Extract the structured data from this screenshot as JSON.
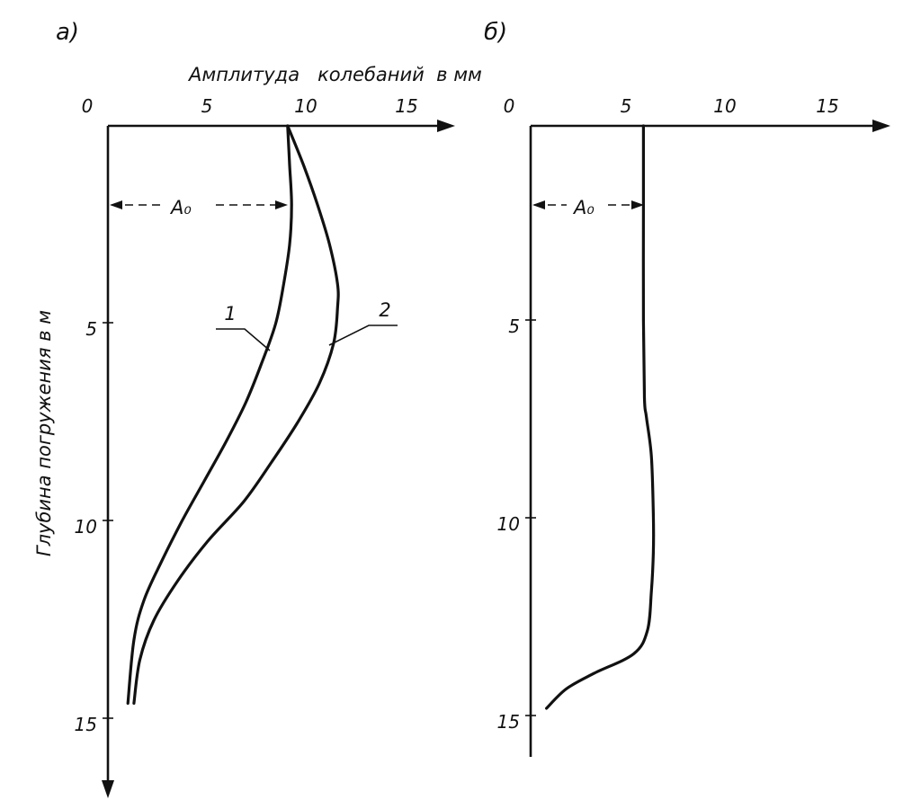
{
  "chart_data": [
    {
      "panel_label": "а)",
      "type": "line",
      "x_label": "Амплитуда   колебаний  в мм",
      "y_label": "Глубина погружения в м",
      "x_ticks": [
        "0",
        "5",
        "10",
        "15"
      ],
      "y_ticks": [
        "5",
        "10",
        "15"
      ],
      "x_tick_values": [
        0,
        5,
        10,
        15
      ],
      "y_tick_values": [
        5,
        10,
        15
      ],
      "xlim": [
        0,
        17
      ],
      "ylim": [
        0,
        17
      ],
      "y_inverted": true,
      "annotation": "A₀",
      "annotation_marker_depth": 2,
      "series": [
        {
          "name": "1",
          "x": [
            9.0,
            9.1,
            9.2,
            9.1,
            8.8,
            8.4,
            7.7,
            6.9,
            5.9,
            4.8,
            3.7,
            2.7,
            1.8,
            1.3,
            1.0
          ],
          "y": [
            0,
            1,
            2,
            3,
            4,
            5,
            6,
            7,
            8,
            9,
            10,
            11,
            12,
            13,
            14.6
          ]
        },
        {
          "name": "2",
          "x": [
            9.0,
            9.8,
            10.5,
            11.1,
            11.5,
            11.5,
            11.3,
            10.6,
            9.5,
            8.2,
            6.8,
            5.0,
            3.5,
            2.3,
            1.6,
            1.3
          ],
          "y": [
            0,
            1,
            2,
            3,
            4,
            4.6,
            5.5,
            6.5,
            7.5,
            8.5,
            9.5,
            10.5,
            11.5,
            12.5,
            13.5,
            14.6
          ]
        }
      ]
    },
    {
      "panel_label": "б)",
      "type": "line",
      "x_ticks": [
        "0",
        "5",
        "10",
        "15"
      ],
      "y_ticks": [
        "5",
        "10",
        "15"
      ],
      "x_tick_values": [
        0,
        5,
        10,
        15
      ],
      "y_tick_values": [
        5,
        10,
        15
      ],
      "xlim": [
        0,
        17.5
      ],
      "ylim": [
        0,
        16.2
      ],
      "y_inverted": true,
      "annotation": "A₀",
      "annotation_marker_depth": 2,
      "series": [
        {
          "name": "",
          "x": [
            5.7,
            5.7,
            5.7,
            5.75,
            5.85,
            6.1,
            6.2,
            6.2,
            6.1,
            5.9,
            5.2,
            3.2,
            1.8,
            0.8
          ],
          "y": [
            0,
            2,
            5,
            7,
            7.5,
            8.5,
            10,
            11,
            12,
            13,
            13.6,
            14.1,
            14.5,
            15
          ]
        }
      ]
    }
  ]
}
